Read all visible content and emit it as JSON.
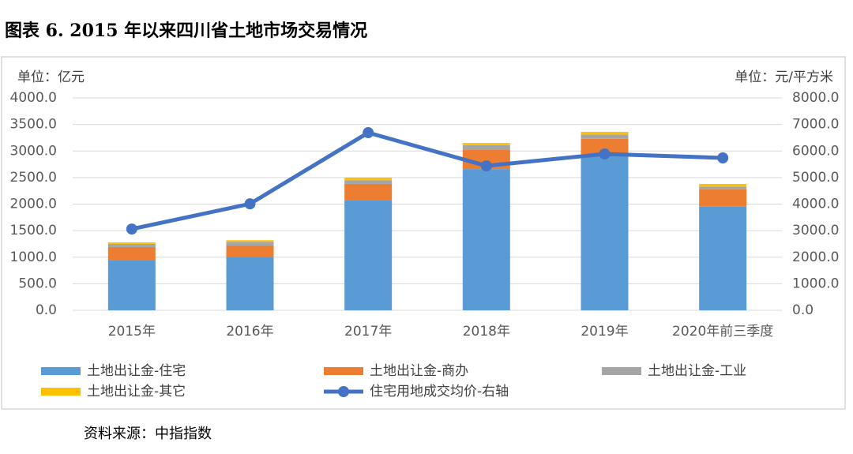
{
  "chart_data": {
    "type": "bar",
    "stacked": true,
    "title": "图表 6. 2015 年以来四川省土地市场交易情况",
    "source": "资料来源：中指指数",
    "y_label": "单位：亿元",
    "y2_label": "单位：元/平方米",
    "categories": [
      "2015年",
      "2016年",
      "2017年",
      "2018年",
      "2019年",
      "2020年前三季度"
    ],
    "series": [
      {
        "name": "土地出让金-住宅",
        "color": "#5b9bd5",
        "values": [
          950,
          1010,
          2080,
          2660,
          2940,
          1950
        ]
      },
      {
        "name": "土地出让金-商办",
        "color": "#ed7d31",
        "values": [
          240,
          210,
          300,
          370,
          290,
          330
        ]
      },
      {
        "name": "土地出让金-工业",
        "color": "#a5a5a5",
        "values": [
          60,
          70,
          70,
          80,
          80,
          50
        ]
      },
      {
        "name": "土地出让金-其它",
        "color": "#ffc000",
        "values": [
          30,
          30,
          50,
          40,
          50,
          50
        ]
      },
      {
        "name": "住宅用地成交均价-右轴",
        "color": "#4472c4",
        "type": "line",
        "axis": "y2",
        "values": [
          3060,
          4010,
          6690,
          5440,
          5890,
          5740
        ]
      }
    ],
    "ylim": [
      0,
      4000
    ],
    "yticks": [
      {
        "value": 0,
        "label": "0.0"
      },
      {
        "value": 500,
        "label": "500.0"
      },
      {
        "value": 1000,
        "label": "1000.0"
      },
      {
        "value": 1500,
        "label": "1500.0"
      },
      {
        "value": 2000,
        "label": "2000.0"
      },
      {
        "value": 2500,
        "label": "2500.0"
      },
      {
        "value": 3000,
        "label": "3000.0"
      },
      {
        "value": 3500,
        "label": "3500.0"
      },
      {
        "value": 4000,
        "label": "4000.0"
      }
    ],
    "y2lim": [
      0,
      8000
    ],
    "y2ticks": [
      {
        "value": 0,
        "label": "0.0"
      },
      {
        "value": 1000,
        "label": "1000.0"
      },
      {
        "value": 2000,
        "label": "2000.0"
      },
      {
        "value": 3000,
        "label": "3000.0"
      },
      {
        "value": 4000,
        "label": "4000.0"
      },
      {
        "value": 5000,
        "label": "5000.0"
      },
      {
        "value": 6000,
        "label": "6000.0"
      },
      {
        "value": 7000,
        "label": "7000.0"
      },
      {
        "value": 8000,
        "label": "8000.0"
      }
    ],
    "grid": true
  }
}
